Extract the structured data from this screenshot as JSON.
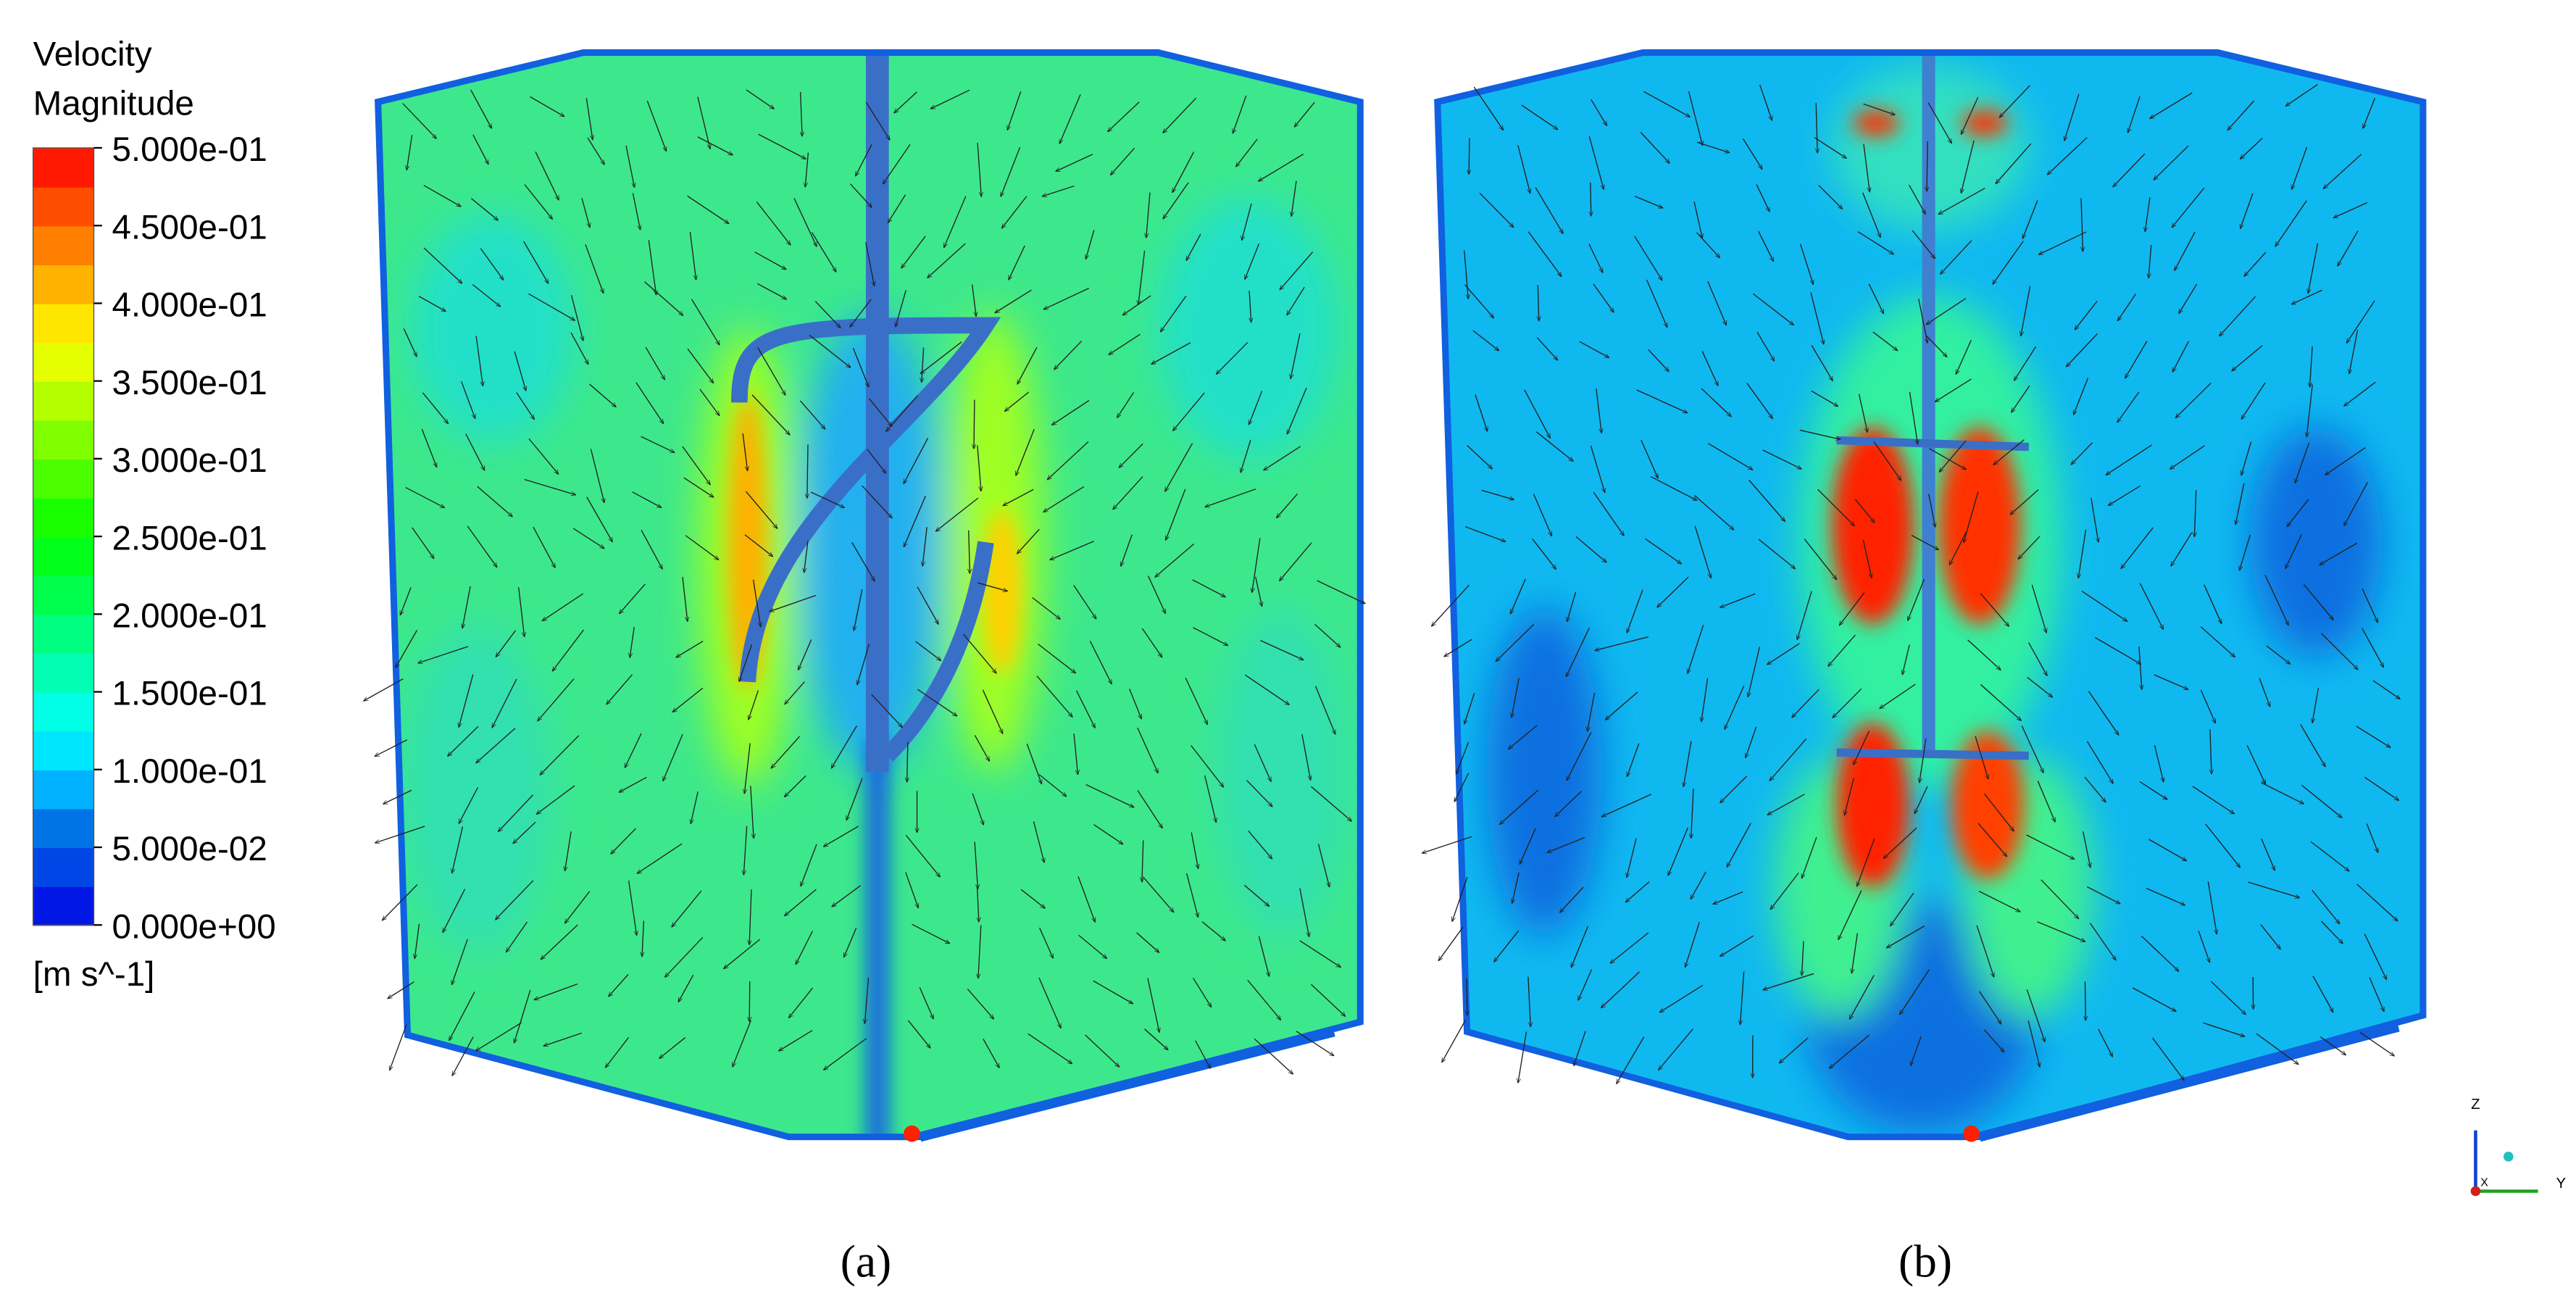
{
  "legend": {
    "title": [
      "Velocity",
      "Magnitude"
    ],
    "range": [
      0,
      0.5
    ],
    "ticks": [
      {
        "value": 0.5,
        "label": "5.000e-01"
      },
      {
        "value": 0.45,
        "label": "4.500e-01"
      },
      {
        "value": 0.4,
        "label": "4.000e-01"
      },
      {
        "value": 0.35,
        "label": "3.500e-01"
      },
      {
        "value": 0.3,
        "label": "3.000e-01"
      },
      {
        "value": 0.25,
        "label": "2.500e-01"
      },
      {
        "value": 0.2,
        "label": "2.000e-01"
      },
      {
        "value": 0.15,
        "label": "1.500e-01"
      },
      {
        "value": 0.1,
        "label": "1.000e-01"
      },
      {
        "value": 0.05,
        "label": "5.000e-02"
      },
      {
        "value": 0,
        "label": "0.000e+00"
      }
    ],
    "unit": "[m s^-1]"
  },
  "panels": [
    {
      "label": "(a)"
    },
    {
      "label": "(b)"
    }
  ],
  "axes": {
    "z": "Z",
    "y": "Y",
    "x": "X"
  }
}
